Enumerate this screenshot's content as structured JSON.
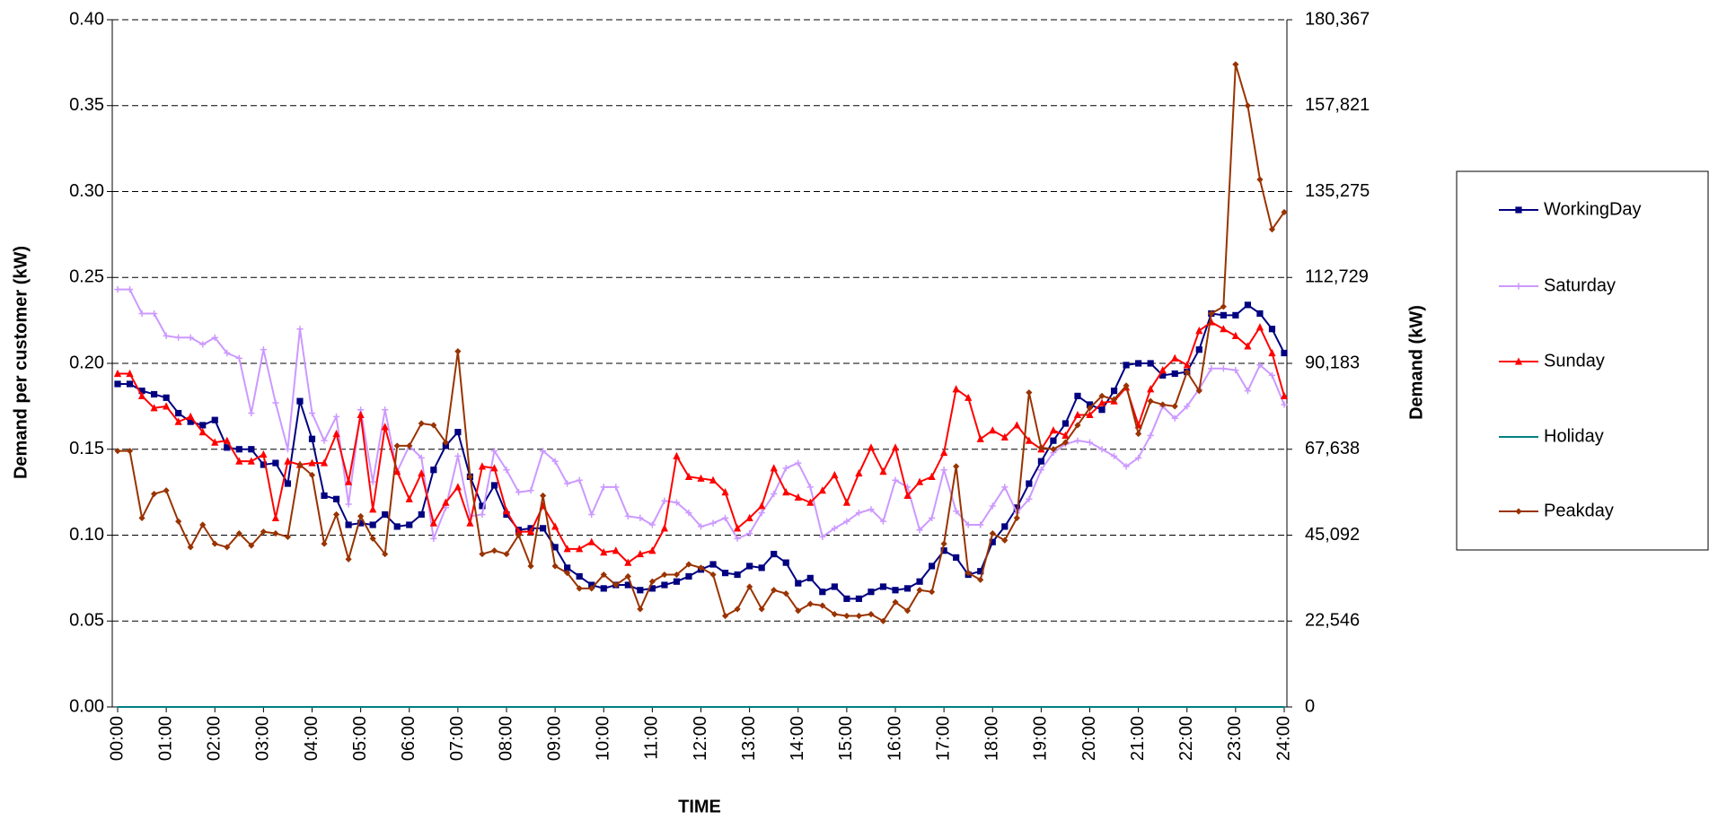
{
  "chart_data": {
    "type": "line",
    "x_label": "TIME",
    "y_label": "Demand per customer (kW)",
    "y2_label": "Demand (kW)",
    "categories": [
      "00:00",
      null,
      null,
      null,
      "01:00",
      null,
      null,
      null,
      "02:00",
      null,
      null,
      null,
      "03:00",
      null,
      null,
      null,
      "04:00",
      null,
      null,
      null,
      "05:00",
      null,
      null,
      null,
      "06:00",
      null,
      null,
      null,
      "07:00",
      null,
      null,
      null,
      "08:00",
      null,
      null,
      null,
      "09:00",
      null,
      null,
      null,
      "10:00",
      null,
      null,
      null,
      "11:00",
      null,
      null,
      null,
      "12:00",
      null,
      null,
      null,
      "13:00",
      null,
      null,
      null,
      "14:00",
      null,
      null,
      null,
      "15:00",
      null,
      null,
      null,
      "16:00",
      null,
      null,
      null,
      "17:00",
      null,
      null,
      null,
      "18:00",
      null,
      null,
      null,
      "19:00",
      null,
      null,
      null,
      "20:00",
      null,
      null,
      null,
      "21:00",
      null,
      null,
      null,
      "22:00",
      null,
      null,
      null,
      "23:00",
      null,
      null,
      null,
      "24:00"
    ],
    "ylim": [
      0,
      0.4
    ],
    "yticks": [
      {
        "value": 0,
        "label": "0.00"
      },
      {
        "value": 0.05,
        "label": "0.05"
      },
      {
        "value": 0.1,
        "label": "0.10"
      },
      {
        "value": 0.15,
        "label": "0.15"
      },
      {
        "value": 0.2,
        "label": "0.20"
      },
      {
        "value": 0.25,
        "label": "0.25"
      },
      {
        "value": 0.3,
        "label": "0.30"
      },
      {
        "value": 0.35,
        "label": "0.35"
      },
      {
        "value": 0.4,
        "label": "0.40"
      }
    ],
    "y2lim": [
      0,
      180367
    ],
    "y2ticks": [
      0,
      {
        "value": 22546,
        "label": "22,546"
      },
      {
        "value": 45092,
        "label": "45,092"
      },
      {
        "value": 67638,
        "label": "67,638"
      },
      {
        "value": 90183,
        "label": "90,183"
      },
      {
        "value": 112729,
        "label": "112,729"
      },
      {
        "value": 135275,
        "label": "135,275"
      },
      {
        "value": 157821,
        "label": "157,821"
      },
      {
        "value": 180367,
        "label": "180,367"
      }
    ],
    "grid": true,
    "legend": "right",
    "series": [
      {
        "name": "WorkingDay",
        "color": "#000080",
        "marker": "square",
        "values": [
          0.188,
          0.188,
          0.184,
          0.182,
          0.18,
          0.171,
          0.166,
          0.164,
          0.167,
          0.151,
          0.15,
          0.15,
          0.141,
          0.142,
          0.13,
          0.178,
          0.156,
          0.123,
          0.121,
          0.106,
          0.107,
          0.106,
          0.112,
          0.105,
          0.106,
          0.112,
          0.138,
          0.152,
          0.16,
          0.134,
          0.117,
          0.129,
          0.112,
          0.103,
          0.104,
          0.104,
          0.093,
          0.081,
          0.076,
          0.071,
          0.069,
          0.071,
          0.071,
          0.068,
          0.069,
          0.071,
          0.073,
          0.076,
          0.08,
          0.083,
          0.078,
          0.077,
          0.082,
          0.081,
          0.089,
          0.084,
          0.072,
          0.075,
          0.067,
          0.07,
          0.063,
          0.063,
          0.067,
          0.07,
          0.068,
          0.069,
          0.073,
          0.082,
          0.091,
          0.087,
          0.077,
          0.079,
          0.096,
          0.105,
          0.116,
          0.13,
          0.143,
          0.155,
          0.165,
          0.181,
          0.176,
          0.173,
          0.184,
          0.199,
          0.2,
          0.2,
          0.193,
          0.194,
          0.195,
          0.208,
          0.229,
          0.228,
          0.228,
          0.234,
          0.229,
          0.22,
          0.206
        ]
      },
      {
        "name": "Saturday",
        "color": "#cc99ff",
        "marker": "plus",
        "values": [
          0.243,
          0.243,
          0.229,
          0.229,
          0.216,
          0.215,
          0.215,
          0.211,
          0.215,
          0.206,
          0.203,
          0.171,
          0.208,
          0.177,
          0.15,
          0.22,
          0.171,
          0.155,
          0.169,
          0.118,
          0.173,
          0.131,
          0.173,
          0.137,
          0.152,
          0.145,
          0.098,
          0.116,
          0.146,
          0.111,
          0.112,
          0.149,
          0.138,
          0.125,
          0.126,
          0.149,
          0.143,
          0.13,
          0.132,
          0.112,
          0.128,
          0.128,
          0.111,
          0.11,
          0.106,
          0.12,
          0.119,
          0.113,
          0.105,
          0.107,
          0.11,
          0.098,
          0.101,
          0.113,
          0.124,
          0.139,
          0.142,
          0.128,
          0.099,
          0.104,
          0.108,
          0.113,
          0.115,
          0.108,
          0.132,
          0.128,
          0.103,
          0.11,
          0.138,
          0.114,
          0.106,
          0.106,
          0.117,
          0.128,
          0.113,
          0.121,
          0.138,
          0.148,
          0.153,
          0.155,
          0.154,
          0.15,
          0.146,
          0.14,
          0.145,
          0.158,
          0.175,
          0.168,
          0.175,
          0.185,
          0.197,
          0.197,
          0.196,
          0.184,
          0.199,
          0.193,
          0.176
        ]
      },
      {
        "name": "Sunday",
        "color": "#ff0000",
        "marker": "triangle",
        "values": [
          0.194,
          0.194,
          0.181,
          0.174,
          0.175,
          0.166,
          0.169,
          0.16,
          0.154,
          0.155,
          0.143,
          0.143,
          0.147,
          0.11,
          0.143,
          0.141,
          0.142,
          0.142,
          0.159,
          0.131,
          0.17,
          0.115,
          0.163,
          0.137,
          0.121,
          0.136,
          0.107,
          0.119,
          0.128,
          0.107,
          0.14,
          0.139,
          0.114,
          0.102,
          0.102,
          0.117,
          0.105,
          0.092,
          0.092,
          0.096,
          0.09,
          0.091,
          0.084,
          0.089,
          0.091,
          0.104,
          0.146,
          0.134,
          0.133,
          0.132,
          0.125,
          0.104,
          0.11,
          0.117,
          0.139,
          0.125,
          0.122,
          0.119,
          0.126,
          0.135,
          0.119,
          0.136,
          0.151,
          0.137,
          0.151,
          0.123,
          0.131,
          0.134,
          0.148,
          0.185,
          0.18,
          0.156,
          0.161,
          0.157,
          0.164,
          0.155,
          0.15,
          0.161,
          0.158,
          0.17,
          0.17,
          0.177,
          0.178,
          0.186,
          0.164,
          0.185,
          0.196,
          0.203,
          0.199,
          0.219,
          0.224,
          0.22,
          0.216,
          0.21,
          0.221,
          0.206,
          0.181
        ]
      },
      {
        "name": "Holiday",
        "color": "#008080",
        "marker": "none",
        "values": [
          0,
          0,
          0,
          0,
          0,
          0,
          0,
          0,
          0,
          0,
          0,
          0,
          0,
          0,
          0,
          0,
          0,
          0,
          0,
          0,
          0,
          0,
          0,
          0,
          0,
          0,
          0,
          0,
          0,
          0,
          0,
          0,
          0,
          0,
          0,
          0,
          0,
          0,
          0,
          0,
          0,
          0,
          0,
          0,
          0,
          0,
          0,
          0,
          0,
          0,
          0,
          0,
          0,
          0,
          0,
          0,
          0,
          0,
          0,
          0,
          0,
          0,
          0,
          0,
          0,
          0,
          0,
          0,
          0,
          0,
          0,
          0,
          0,
          0,
          0,
          0,
          0,
          0,
          0,
          0,
          0,
          0,
          0,
          0,
          0,
          0,
          0,
          0,
          0,
          0,
          0,
          0,
          0,
          0,
          0,
          0,
          0
        ]
      },
      {
        "name": "Peakday",
        "color": "#993300",
        "marker": "diamond",
        "values": [
          0.149,
          0.149,
          0.11,
          0.124,
          0.126,
          0.108,
          0.093,
          0.106,
          0.095,
          0.093,
          0.101,
          0.094,
          0.102,
          0.101,
          0.099,
          0.141,
          0.135,
          0.095,
          0.112,
          0.086,
          0.111,
          0.098,
          0.089,
          0.152,
          0.152,
          0.165,
          0.164,
          0.154,
          0.207,
          0.134,
          0.089,
          0.091,
          0.089,
          0.1,
          0.082,
          0.123,
          0.082,
          0.078,
          0.069,
          0.069,
          0.077,
          0.071,
          0.076,
          0.057,
          0.073,
          0.077,
          0.077,
          0.083,
          0.081,
          0.077,
          0.053,
          0.057,
          0.07,
          0.057,
          0.068,
          0.066,
          0.056,
          0.06,
          0.059,
          0.054,
          0.053,
          0.053,
          0.054,
          0.05,
          0.061,
          0.056,
          0.068,
          0.067,
          0.095,
          0.14,
          0.078,
          0.074,
          0.101,
          0.097,
          0.11,
          0.183,
          0.151,
          0.15,
          0.154,
          0.164,
          0.174,
          0.181,
          0.179,
          0.187,
          0.159,
          0.178,
          0.176,
          0.175,
          0.195,
          0.184,
          0.229,
          0.233,
          0.374,
          0.35,
          0.307,
          0.278,
          0.288
        ]
      }
    ]
  }
}
